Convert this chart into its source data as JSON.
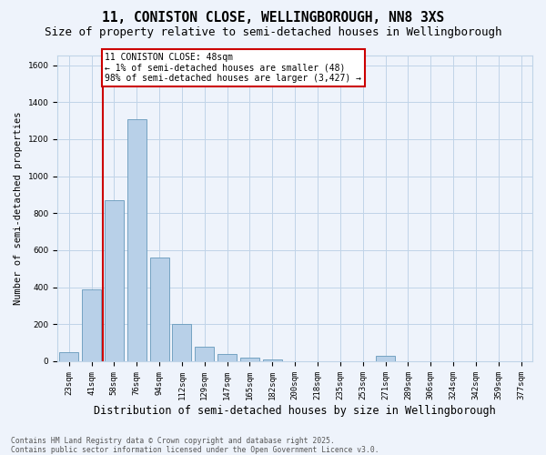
{
  "title1": "11, CONISTON CLOSE, WELLINGBOROUGH, NN8 3XS",
  "title2": "Size of property relative to semi-detached houses in Wellingborough",
  "xlabel": "Distribution of semi-detached houses by size in Wellingborough",
  "ylabel": "Number of semi-detached properties",
  "bar_labels": [
    "23sqm",
    "41sqm",
    "58sqm",
    "76sqm",
    "94sqm",
    "112sqm",
    "129sqm",
    "147sqm",
    "165sqm",
    "182sqm",
    "200sqm",
    "218sqm",
    "235sqm",
    "253sqm",
    "271sqm",
    "289sqm",
    "306sqm",
    "324sqm",
    "342sqm",
    "359sqm",
    "377sqm"
  ],
  "bar_values": [
    50,
    390,
    870,
    1310,
    560,
    200,
    80,
    40,
    20,
    10,
    0,
    0,
    0,
    0,
    30,
    0,
    0,
    0,
    0,
    0,
    0
  ],
  "bar_color": "#b8d0e8",
  "bar_edge_color": "#6699bb",
  "property_line_x": 1.5,
  "annotation_text": "11 CONISTON CLOSE: 48sqm\n← 1% of semi-detached houses are smaller (48)\n98% of semi-detached houses are larger (3,427) →",
  "annotation_box_facecolor": "#ffffff",
  "annotation_box_edgecolor": "#cc0000",
  "vline_color": "#cc0000",
  "ylim": [
    0,
    1650
  ],
  "yticks": [
    0,
    200,
    400,
    600,
    800,
    1000,
    1200,
    1400,
    1600
  ],
  "grid_color": "#c0d4e8",
  "bg_color": "#eef3fb",
  "footnote": "Contains HM Land Registry data © Crown copyright and database right 2025.\nContains public sector information licensed under the Open Government Licence v3.0.",
  "title1_fontsize": 10.5,
  "title2_fontsize": 9,
  "xlabel_fontsize": 8.5,
  "ylabel_fontsize": 7.5,
  "tick_fontsize": 6.5,
  "footnote_fontsize": 5.8,
  "annot_fontsize": 7
}
